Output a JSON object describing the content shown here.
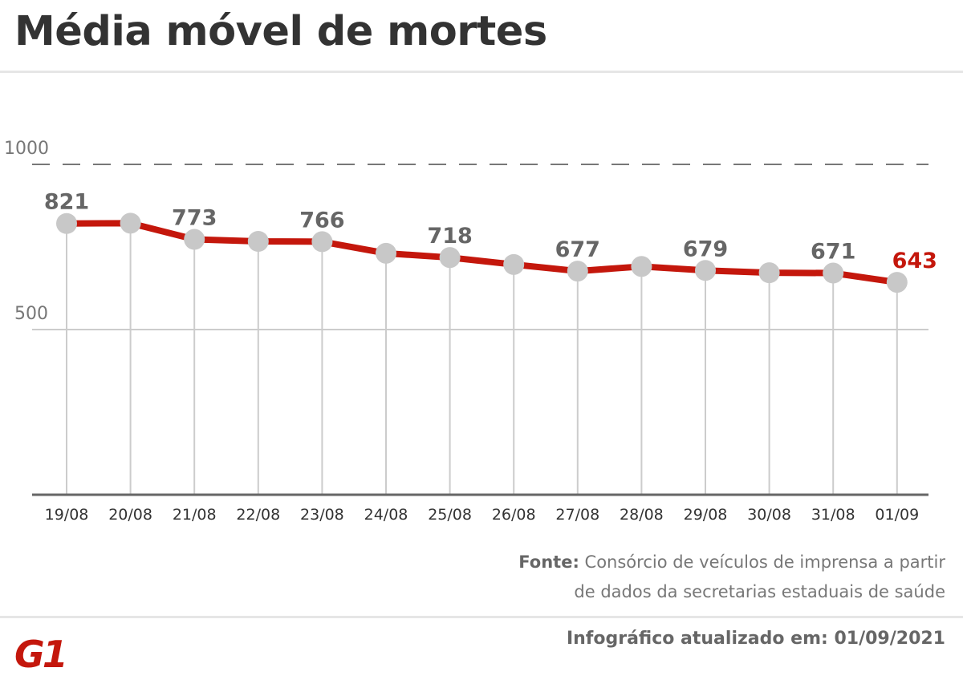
{
  "title": "Média móvel de mortes",
  "chart_data": {
    "type": "line",
    "title": "Média móvel de mortes",
    "categories": [
      "19/08",
      "20/08",
      "21/08",
      "22/08",
      "23/08",
      "24/08",
      "25/08",
      "26/08",
      "27/08",
      "28/08",
      "29/08",
      "30/08",
      "31/08",
      "01/09"
    ],
    "values": [
      821,
      822,
      773,
      767,
      766,
      731,
      718,
      697,
      677,
      691,
      679,
      672,
      671,
      643
    ],
    "data_labels": [
      "821",
      null,
      "773",
      null,
      "766",
      null,
      "718",
      null,
      "677",
      null,
      "679",
      null,
      "671",
      "643"
    ],
    "yticks": [
      500,
      1000
    ],
    "ytick_labels": [
      "500",
      "1000"
    ],
    "ylim": [
      0,
      1000
    ],
    "grid": true,
    "line_color": "#c4170c",
    "marker_color": "#c8c8c8",
    "highlight_color": "#c4170c"
  },
  "source": {
    "label": "Fonte:",
    "line1": " Consórcio de veículos de imprensa a partir",
    "line2": "de dados da secretarias estaduais de saúde"
  },
  "footer": "Infográfico atualizado em: 01/09/2021",
  "logo": "G1"
}
